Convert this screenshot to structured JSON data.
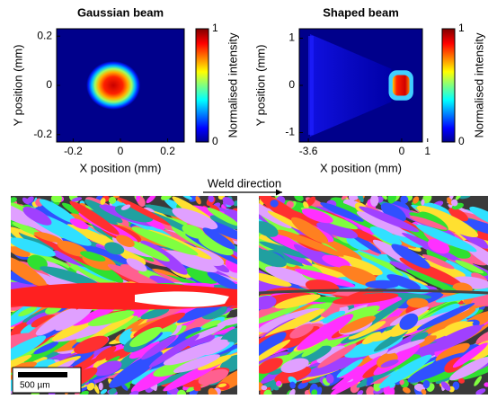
{
  "chart_data": [
    {
      "type": "heatmap",
      "title": "Gaussian beam",
      "xlabel": "X position (mm)",
      "ylabel": "Y position (mm)",
      "xlim": [
        -0.27,
        0.27
      ],
      "ylim": [
        -0.23,
        0.23
      ],
      "xticks": [
        -0.2,
        0,
        0.2
      ],
      "yticks": [
        -0.2,
        0,
        0.2
      ],
      "colorbar_label": "Normalised intensity",
      "clim": [
        0,
        1
      ],
      "cticks": [
        0,
        1
      ]
    },
    {
      "type": "heatmap",
      "title": "Shaped beam",
      "xlabel": "X position (mm)",
      "ylabel": "Y position (mm)",
      "xlim": [
        -3.95,
        0.8
      ],
      "ylim": [
        -1.2,
        1.2
      ],
      "xticks": [
        -3.6,
        0,
        1
      ],
      "yticks": [
        -1,
        0,
        1
      ],
      "colorbar_label": "Normalised intensity",
      "clim": [
        0,
        1
      ],
      "cticks": [
        0,
        1
      ]
    }
  ],
  "annotation": "Weld direction",
  "scale_bar": "500 µm"
}
